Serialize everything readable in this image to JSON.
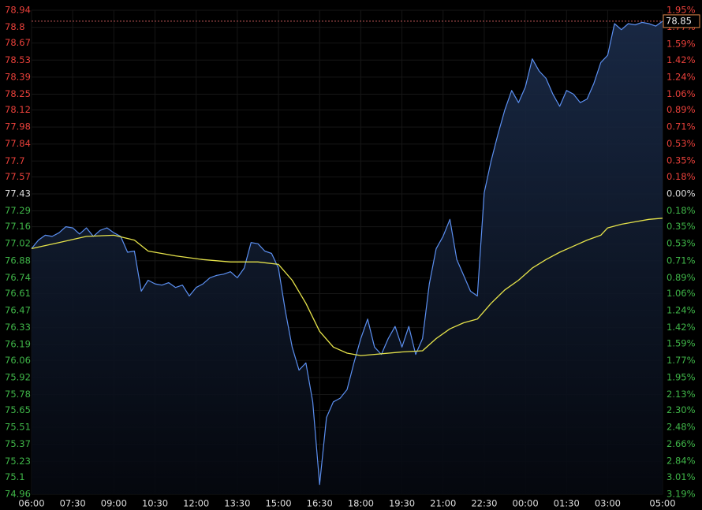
{
  "chart_data": {
    "type": "line",
    "x_unit": "minutes",
    "xlim": [
      0,
      1380
    ],
    "xticks": [
      {
        "value": 0,
        "label": "06:00"
      },
      {
        "value": 90,
        "label": "07:30"
      },
      {
        "value": 180,
        "label": "09:00"
      },
      {
        "value": 270,
        "label": "10:30"
      },
      {
        "value": 360,
        "label": "12:00"
      },
      {
        "value": 450,
        "label": "13:30"
      },
      {
        "value": 540,
        "label": "15:00"
      },
      {
        "value": 630,
        "label": "16:30"
      },
      {
        "value": 720,
        "label": "18:00"
      },
      {
        "value": 810,
        "label": "19:30"
      },
      {
        "value": 900,
        "label": "21:00"
      },
      {
        "value": 990,
        "label": "22:30"
      },
      {
        "value": 1080,
        "label": "00:00"
      },
      {
        "value": 1170,
        "label": "01:30"
      },
      {
        "value": 1260,
        "label": "03:00"
      },
      {
        "value": 1380,
        "label": "05:00"
      }
    ],
    "ylim": [
      74.96,
      78.94
    ],
    "yticks": [
      78.94,
      78.8,
      78.67,
      78.53,
      78.39,
      78.25,
      78.12,
      77.98,
      77.84,
      77.7,
      77.57,
      77.43,
      77.29,
      77.16,
      77.02,
      76.88,
      76.74,
      76.61,
      76.47,
      76.33,
      76.19,
      76.06,
      75.92,
      75.78,
      75.65,
      75.51,
      75.37,
      75.23,
      75.1,
      74.96
    ],
    "y2lim": [
      -3.19,
      1.95
    ],
    "y2ticks": [
      {
        "value": 1.95,
        "label": "1.95%"
      },
      {
        "value": 1.77,
        "label": "1.77%"
      },
      {
        "value": 1.59,
        "label": "1.59%"
      },
      {
        "value": 1.42,
        "label": "1.42%"
      },
      {
        "value": 1.24,
        "label": "1.24%"
      },
      {
        "value": 1.06,
        "label": "1.06%"
      },
      {
        "value": 0.89,
        "label": "0.89%"
      },
      {
        "value": 0.71,
        "label": "0.71%"
      },
      {
        "value": 0.53,
        "label": "0.53%"
      },
      {
        "value": 0.35,
        "label": "0.35%"
      },
      {
        "value": 0.18,
        "label": "0.18%"
      },
      {
        "value": 0,
        "label": "0.00%"
      },
      {
        "value": -0.18,
        "label": "0.18%"
      },
      {
        "value": -0.35,
        "label": "0.35%"
      },
      {
        "value": -0.53,
        "label": "0.53%"
      },
      {
        "value": -0.71,
        "label": "0.71%"
      },
      {
        "value": -0.89,
        "label": "0.89%"
      },
      {
        "value": -1.06,
        "label": "1.06%"
      },
      {
        "value": -1.24,
        "label": "1.24%"
      },
      {
        "value": -1.42,
        "label": "1.42%"
      },
      {
        "value": -1.59,
        "label": "1.59%"
      },
      {
        "value": -1.77,
        "label": "1.77%"
      },
      {
        "value": -1.95,
        "label": "1.95%"
      },
      {
        "value": -2.13,
        "label": "2.13%"
      },
      {
        "value": -2.3,
        "label": "2.30%"
      },
      {
        "value": -2.48,
        "label": "2.48%"
      },
      {
        "value": -2.66,
        "label": "2.66%"
      },
      {
        "value": -2.84,
        "label": "2.84%"
      },
      {
        "value": -3.01,
        "label": "3.01%"
      },
      {
        "value": -3.19,
        "label": "3.19%"
      }
    ],
    "up_color": "#e8403a",
    "down_color": "#3fb548",
    "flat_color": "#dddddd",
    "grid": true,
    "series": [
      {
        "color": "#5b8ff0",
        "x": [
          0,
          15,
          30,
          45,
          60,
          75,
          90,
          105,
          120,
          135,
          150,
          165,
          180,
          195,
          210,
          225,
          240,
          255,
          270,
          285,
          300,
          315,
          330,
          345,
          360,
          375,
          390,
          405,
          420,
          435,
          450,
          465,
          480,
          495,
          510,
          525,
          540,
          555,
          570,
          585,
          600,
          615,
          630,
          645,
          660,
          675,
          690,
          705,
          720,
          735,
          750,
          765,
          780,
          795,
          810,
          825,
          840,
          855,
          870,
          885,
          900,
          915,
          930,
          945,
          960,
          975,
          990,
          1005,
          1020,
          1035,
          1050,
          1065,
          1080,
          1095,
          1110,
          1125,
          1140,
          1155,
          1170,
          1185,
          1200,
          1215,
          1230,
          1245,
          1260,
          1275,
          1290,
          1305,
          1320,
          1335,
          1350,
          1365,
          1380
        ],
        "values": [
          76.98,
          77.05,
          77.09,
          77.08,
          77.11,
          77.16,
          77.15,
          77.1,
          77.15,
          77.08,
          77.13,
          77.15,
          77.11,
          77.08,
          76.95,
          76.96,
          76.63,
          76.72,
          76.69,
          76.68,
          76.7,
          76.66,
          76.68,
          76.59,
          76.66,
          76.69,
          76.74,
          76.76,
          76.77,
          76.79,
          76.74,
          76.82,
          77.03,
          77.02,
          76.96,
          76.94,
          76.82,
          76.47,
          76.17,
          75.98,
          76.04,
          75.72,
          75.04,
          75.59,
          75.72,
          75.75,
          75.82,
          76.04,
          76.24,
          76.4,
          76.17,
          76.11,
          76.24,
          76.34,
          76.17,
          76.34,
          76.11,
          76.24,
          76.69,
          76.98,
          77.08,
          77.22,
          76.89,
          76.76,
          76.63,
          76.59,
          77.44,
          77.7,
          77.92,
          78.12,
          78.28,
          78.18,
          78.31,
          78.54,
          78.44,
          78.38,
          78.25,
          78.15,
          78.28,
          78.25,
          78.18,
          78.21,
          78.34,
          78.51,
          78.57,
          78.83,
          78.78,
          78.83,
          78.82,
          78.84,
          78.83,
          78.81,
          78.85
        ]
      },
      {
        "color": "#e6e34a",
        "x": [
          0,
          60,
          120,
          180,
          225,
          255,
          315,
          375,
          435,
          495,
          540,
          570,
          600,
          630,
          660,
          690,
          720,
          750,
          810,
          855,
          885,
          915,
          945,
          975,
          1005,
          1035,
          1065,
          1095,
          1125,
          1155,
          1185,
          1215,
          1245,
          1260,
          1290,
          1320,
          1350,
          1380
        ],
        "values": [
          76.98,
          77.03,
          77.08,
          77.09,
          77.05,
          76.96,
          76.92,
          76.89,
          76.87,
          76.87,
          76.85,
          76.72,
          76.53,
          76.3,
          76.17,
          76.12,
          76.1,
          76.11,
          76.13,
          76.14,
          76.24,
          76.32,
          76.37,
          76.4,
          76.53,
          76.64,
          76.72,
          76.82,
          76.89,
          76.95,
          77.0,
          77.05,
          77.09,
          77.15,
          77.18,
          77.2,
          77.22,
          77.23
        ]
      }
    ]
  }
}
